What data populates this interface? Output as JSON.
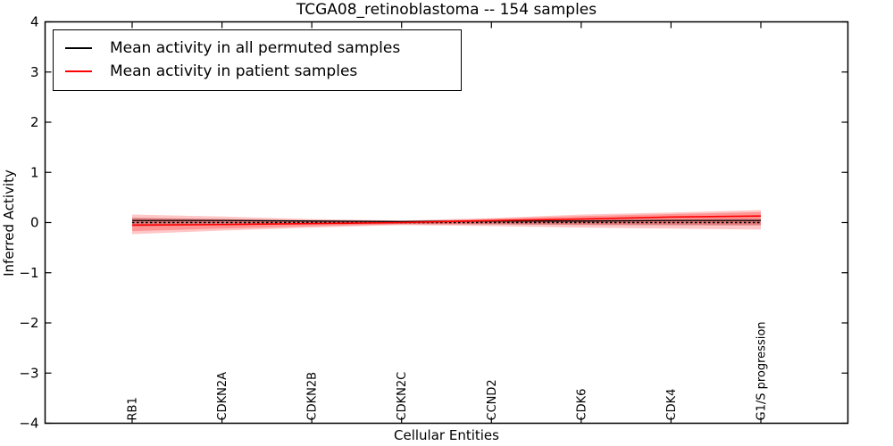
{
  "figure": {
    "background": "#ffffff",
    "frame_color": "#000000"
  },
  "chart_data": {
    "type": "line",
    "title": "TCGA08_retinoblastoma -- 154 samples",
    "xlabel": "Cellular Entities",
    "ylabel": "Inferred Activity",
    "ylim": [
      -4,
      4
    ],
    "yticks": [
      -4,
      -3,
      -2,
      -1,
      0,
      1,
      2,
      3,
      4
    ],
    "grid": false,
    "legend_position": "upper left",
    "categories": [
      "RB1",
      "CDKN2A",
      "CDKN2B",
      "CDKN2C",
      "CCND2",
      "CDK6",
      "CDK4",
      "G1/S progression"
    ],
    "zero_line": {
      "value": 0,
      "style": "dashed",
      "color": "#000000"
    },
    "series": [
      {
        "name": "Mean activity in all permuted samples",
        "color": "#000000",
        "band_color": "rgba(110,110,110,0.28)",
        "values": [
          0.04,
          0.04,
          0.03,
          0.02,
          0.03,
          0.03,
          0.04,
          0.04
        ],
        "band_upper": [
          0.1,
          0.07,
          0.05,
          0.04,
          0.05,
          0.06,
          0.07,
          0.08
        ],
        "band_lower": [
          -0.08,
          -0.05,
          -0.04,
          -0.03,
          -0.04,
          -0.05,
          -0.06,
          -0.06
        ]
      },
      {
        "name": "Mean activity in patient samples",
        "color": "#ff0000",
        "band_color": "rgba(255,0,0,0.22)",
        "values": [
          -0.05,
          -0.04,
          -0.02,
          0.0,
          0.04,
          0.07,
          0.11,
          0.13
        ],
        "band_upper": [
          0.16,
          0.12,
          0.07,
          0.04,
          0.09,
          0.16,
          0.2,
          0.25
        ],
        "band_lower": [
          -0.23,
          -0.16,
          -0.1,
          -0.05,
          -0.07,
          -0.1,
          -0.12,
          -0.14
        ]
      }
    ]
  }
}
